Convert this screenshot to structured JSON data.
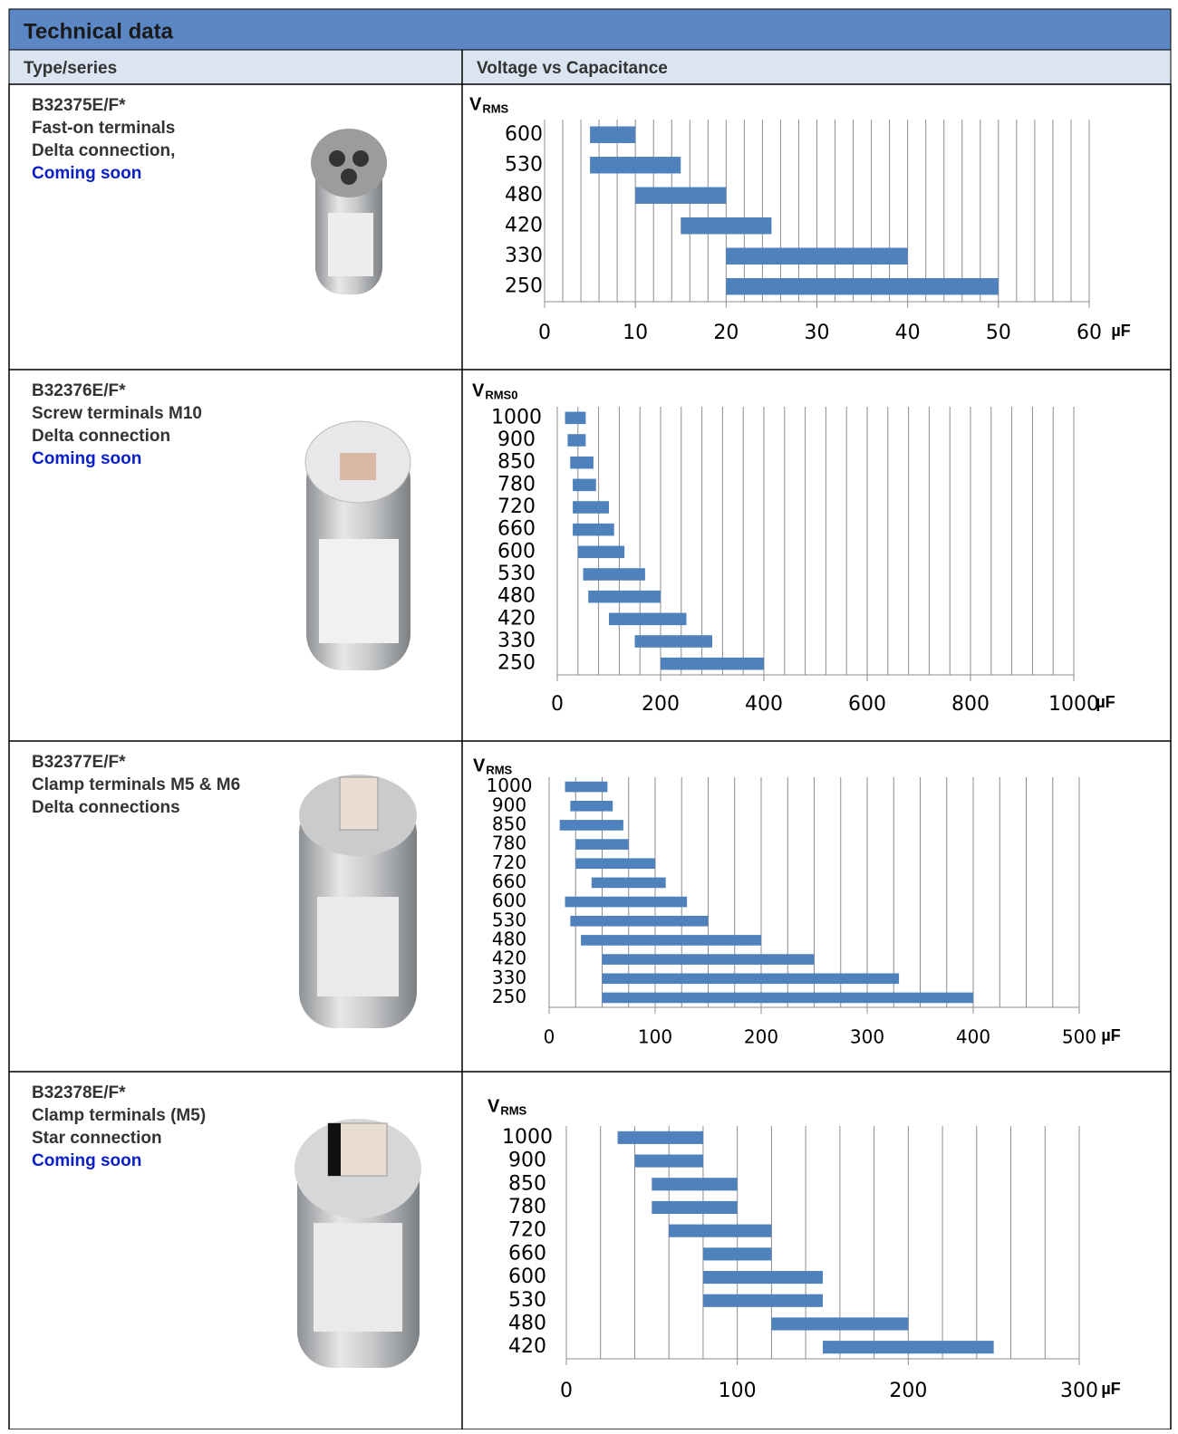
{
  "header": {
    "title": "Technical data"
  },
  "columns": [
    "Type/series",
    "Voltage vs Capacitance"
  ],
  "rows": [
    {
      "type": "B32375E/F*",
      "lines": [
        "Fast-on terminals",
        "Delta connection,"
      ],
      "status": "Coming soon"
    },
    {
      "type": "B32376E/F*",
      "lines": [
        "Screw terminals M10",
        "Delta connection"
      ],
      "status": "Coming soon"
    },
    {
      "type": "B32377E/F*",
      "lines": [
        "Clamp terminals M5 & M6",
        "Delta connections"
      ]
    },
    {
      "type": "B32378E/F*",
      "lines": [
        "Clamp terminals (M5)",
        "Star connection"
      ],
      "status": "Coming soon"
    }
  ],
  "chart_data": [
    {
      "type": "bar",
      "y_label": {
        "main": "V",
        "sub": "RMS"
      },
      "x_unit": "µF",
      "color": "#4f81bd",
      "categories": [
        "600",
        "530",
        "480",
        "420",
        "330",
        "250"
      ],
      "start": [
        5,
        5,
        10,
        15,
        20,
        20
      ],
      "end": [
        10,
        15,
        20,
        25,
        40,
        50
      ],
      "xlim": [
        0,
        60
      ],
      "xticks": [
        0,
        10,
        20,
        30,
        40,
        50,
        60
      ],
      "grid_step": 2
    },
    {
      "type": "bar",
      "y_label": {
        "main": "V",
        "sub": "RMS0"
      },
      "x_unit": "µF",
      "color": "#4f81bd",
      "categories": [
        "1000",
        "900",
        "850",
        "780",
        "720",
        "660",
        "600",
        "530",
        "480",
        "420",
        "330",
        "250"
      ],
      "start": [
        15,
        20,
        25,
        30,
        30,
        30,
        40,
        50,
        60,
        100,
        150,
        200
      ],
      "end": [
        55,
        55,
        70,
        75,
        100,
        110,
        130,
        170,
        200,
        250,
        300,
        400
      ],
      "xlim": [
        0,
        1000
      ],
      "xticks": [
        0,
        200,
        400,
        600,
        800,
        1000
      ],
      "grid_step": 40
    },
    {
      "type": "bar",
      "y_label": {
        "main": "V",
        "sub": "RMS"
      },
      "x_unit": "µF",
      "color": "#4f81bd",
      "categories": [
        "1000",
        "900",
        "850",
        "780",
        "720",
        "660",
        "600",
        "530",
        "480",
        "420",
        "330",
        "250"
      ],
      "start": [
        15,
        20,
        10,
        25,
        25,
        40,
        15,
        20,
        30,
        50,
        50,
        50
      ],
      "end": [
        55,
        60,
        70,
        75,
        100,
        110,
        130,
        150,
        200,
        250,
        330,
        400
      ],
      "xlim": [
        0,
        500
      ],
      "xticks": [
        0,
        100,
        200,
        300,
        400,
        500
      ],
      "grid_step": 25
    },
    {
      "type": "bar",
      "y_label": {
        "main": "V",
        "sub": "RMS"
      },
      "x_unit": "µF",
      "color": "#4f81bd",
      "categories": [
        "1000",
        "900",
        "850",
        "780",
        "720",
        "660",
        "600",
        "530",
        "480",
        "420"
      ],
      "start": [
        30,
        40,
        50,
        50,
        60,
        80,
        80,
        80,
        120,
        150
      ],
      "end": [
        80,
        80,
        100,
        100,
        120,
        120,
        150,
        150,
        200,
        250
      ],
      "xlim": [
        0,
        300
      ],
      "xticks": [
        0,
        100,
        200,
        300
      ],
      "grid_step": 20
    }
  ]
}
